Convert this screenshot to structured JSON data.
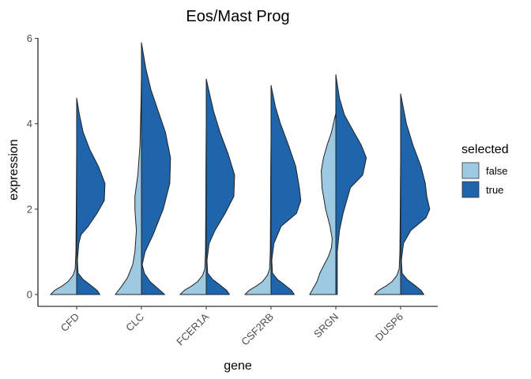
{
  "chart_data": {
    "type": "violin",
    "title": "Eos/Mast Prog",
    "xlabel": "gene",
    "ylabel": "expression",
    "ylim": [
      -0.25,
      6.2
    ],
    "yticks": [
      0,
      2,
      4,
      6
    ],
    "categories": [
      "CFD",
      "CLC",
      "FCER1A",
      "CSF2RB",
      "SRGN",
      "DUSP6"
    ],
    "grid": false,
    "legend": {
      "title": "selected",
      "position": "right",
      "items": [
        {
          "label": "false",
          "color": "#9ecae1"
        },
        {
          "label": "true",
          "color": "#1f65ab"
        }
      ]
    },
    "series": [
      {
        "name": "false",
        "color": "#9ecae1",
        "side": "left",
        "violins": [
          {
            "max": 3.35,
            "profile": [
              [
                0,
                0.36
              ],
              [
                0.1,
                0.3
              ],
              [
                0.2,
                0.2
              ],
              [
                0.3,
                0.12
              ],
              [
                0.45,
                0.05
              ],
              [
                0.6,
                0.02
              ],
              [
                1,
                0.01
              ],
              [
                2,
                0.005
              ],
              [
                3.35,
                0
              ]
            ]
          },
          {
            "max": 5.1,
            "profile": [
              [
                0,
                0.36
              ],
              [
                0.2,
                0.27
              ],
              [
                0.4,
                0.19
              ],
              [
                0.7,
                0.12
              ],
              [
                1.0,
                0.09
              ],
              [
                1.5,
                0.07
              ],
              [
                2.0,
                0.09
              ],
              [
                2.3,
                0.09
              ],
              [
                2.8,
                0.05
              ],
              [
                3.5,
                0.02
              ],
              [
                4.5,
                0.006
              ],
              [
                5.1,
                0
              ]
            ]
          },
          {
            "max": 4.0,
            "profile": [
              [
                0,
                0.36
              ],
              [
                0.1,
                0.3
              ],
              [
                0.2,
                0.2
              ],
              [
                0.3,
                0.12
              ],
              [
                0.45,
                0.05
              ],
              [
                0.6,
                0.02
              ],
              [
                1,
                0.01
              ],
              [
                2,
                0.006
              ],
              [
                3,
                0.004
              ],
              [
                4.0,
                0
              ]
            ]
          },
          {
            "max": 3.65,
            "profile": [
              [
                0,
                0.36
              ],
              [
                0.1,
                0.3
              ],
              [
                0.2,
                0.2
              ],
              [
                0.3,
                0.12
              ],
              [
                0.45,
                0.05
              ],
              [
                0.6,
                0.02
              ],
              [
                1,
                0.01
              ],
              [
                2,
                0.006
              ],
              [
                3,
                0.004
              ],
              [
                3.65,
                0
              ]
            ]
          },
          {
            "max": 4.25,
            "profile": [
              [
                0,
                0.36
              ],
              [
                0.15,
                0.31
              ],
              [
                0.3,
                0.26
              ],
              [
                0.5,
                0.22
              ],
              [
                0.7,
                0.16
              ],
              [
                0.9,
                0.1
              ],
              [
                1.1,
                0.06
              ],
              [
                1.3,
                0.05
              ],
              [
                1.6,
                0.08
              ],
              [
                2.0,
                0.14
              ],
              [
                2.5,
                0.19
              ],
              [
                2.9,
                0.2
              ],
              [
                3.2,
                0.17
              ],
              [
                3.5,
                0.12
              ],
              [
                3.8,
                0.06
              ],
              [
                4.25,
                0
              ]
            ]
          },
          {
            "max": 3.2,
            "profile": [
              [
                0,
                0.36
              ],
              [
                0.1,
                0.3
              ],
              [
                0.2,
                0.2
              ],
              [
                0.3,
                0.12
              ],
              [
                0.45,
                0.05
              ],
              [
                0.6,
                0.02
              ],
              [
                1,
                0.01
              ],
              [
                2,
                0.005
              ],
              [
                3.2,
                0
              ]
            ]
          }
        ]
      },
      {
        "name": "true",
        "color": "#1f65ab",
        "side": "right",
        "violins": [
          {
            "max": 4.6,
            "profile": [
              [
                0,
                0.32
              ],
              [
                0.1,
                0.28
              ],
              [
                0.25,
                0.17
              ],
              [
                0.35,
                0.09
              ],
              [
                0.5,
                0.02
              ],
              [
                0.8,
                0.01
              ],
              [
                1.2,
                0.03
              ],
              [
                1.4,
                0.06
              ],
              [
                1.6,
                0.16
              ],
              [
                1.9,
                0.28
              ],
              [
                2.2,
                0.38
              ],
              [
                2.6,
                0.39
              ],
              [
                3.0,
                0.3
              ],
              [
                3.4,
                0.18
              ],
              [
                3.8,
                0.09
              ],
              [
                4.2,
                0.04
              ],
              [
                4.6,
                0
              ]
            ]
          },
          {
            "max": 5.9,
            "profile": [
              [
                0,
                0.32
              ],
              [
                0.3,
                0.12
              ],
              [
                0.5,
                0.04
              ],
              [
                0.7,
                0.01
              ],
              [
                1.0,
                0.05
              ],
              [
                1.4,
                0.16
              ],
              [
                2.0,
                0.3
              ],
              [
                2.6,
                0.39
              ],
              [
                3.2,
                0.4
              ],
              [
                3.8,
                0.33
              ],
              [
                4.3,
                0.23
              ],
              [
                4.8,
                0.13
              ],
              [
                5.3,
                0.06
              ],
              [
                5.9,
                0
              ]
            ]
          },
          {
            "max": 5.05,
            "profile": [
              [
                0,
                0.32
              ],
              [
                0.1,
                0.28
              ],
              [
                0.25,
                0.17
              ],
              [
                0.35,
                0.09
              ],
              [
                0.5,
                0.02
              ],
              [
                0.8,
                0.01
              ],
              [
                1.2,
                0.04
              ],
              [
                1.5,
                0.12
              ],
              [
                1.9,
                0.26
              ],
              [
                2.3,
                0.38
              ],
              [
                2.8,
                0.39
              ],
              [
                3.3,
                0.3
              ],
              [
                3.8,
                0.19
              ],
              [
                4.3,
                0.1
              ],
              [
                5.05,
                0
              ]
            ]
          },
          {
            "max": 4.9,
            "profile": [
              [
                0,
                0.32
              ],
              [
                0.1,
                0.28
              ],
              [
                0.25,
                0.17
              ],
              [
                0.35,
                0.09
              ],
              [
                0.5,
                0.02
              ],
              [
                0.8,
                0.01
              ],
              [
                1.2,
                0.04
              ],
              [
                1.6,
                0.14
              ],
              [
                1.9,
                0.35
              ],
              [
                2.2,
                0.41
              ],
              [
                2.5,
                0.39
              ],
              [
                3.0,
                0.34
              ],
              [
                3.5,
                0.24
              ],
              [
                4.0,
                0.13
              ],
              [
                4.4,
                0.06
              ],
              [
                4.9,
                0
              ]
            ]
          },
          {
            "max": 5.15,
            "profile": [
              [
                0,
                0.02
              ],
              [
                1.0,
                0.02
              ],
              [
                1.5,
                0.05
              ],
              [
                1.9,
                0.1
              ],
              [
                2.2,
                0.15
              ],
              [
                2.5,
                0.2
              ],
              [
                2.8,
                0.37
              ],
              [
                3.2,
                0.42
              ],
              [
                3.5,
                0.35
              ],
              [
                3.8,
                0.25
              ],
              [
                4.2,
                0.12
              ],
              [
                4.6,
                0.05
              ],
              [
                5.15,
                0
              ]
            ]
          },
          {
            "max": 4.7,
            "profile": [
              [
                0,
                0.32
              ],
              [
                0.1,
                0.28
              ],
              [
                0.25,
                0.17
              ],
              [
                0.35,
                0.09
              ],
              [
                0.5,
                0.02
              ],
              [
                0.8,
                0.01
              ],
              [
                1.2,
                0.04
              ],
              [
                1.5,
                0.14
              ],
              [
                1.8,
                0.35
              ],
              [
                2.0,
                0.4
              ],
              [
                2.3,
                0.36
              ],
              [
                2.6,
                0.34
              ],
              [
                3.0,
                0.28
              ],
              [
                3.5,
                0.17
              ],
              [
                4.0,
                0.08
              ],
              [
                4.7,
                0
              ]
            ]
          }
        ]
      }
    ]
  }
}
